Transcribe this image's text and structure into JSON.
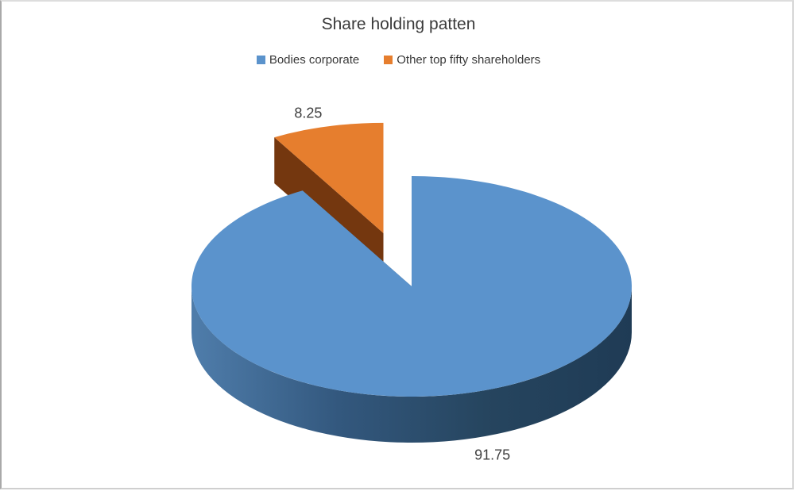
{
  "page": {
    "background": "#FFFFFF",
    "frame_border_color": "#C9C9C9"
  },
  "chart_data": {
    "type": "pie",
    "effect": "3d-exploded",
    "title": "Share holding patten",
    "legend_position": "top",
    "grid": false,
    "series": [
      {
        "name": "Bodies corporate",
        "value": 91.75,
        "label": "91.75",
        "color": "#5B93CC",
        "side_gradient": [
          "#4F7DAB",
          "#33587E",
          "#26455F",
          "#1F3B55"
        ],
        "exploded": false
      },
      {
        "name": "Other top fifty shareholders",
        "value": 8.25,
        "label": "8.25",
        "color": "#E67E2E",
        "side_color": "#74370F",
        "exploded": true
      }
    ],
    "title_color": "#3A3A3A",
    "label_color": "#3F3F3F",
    "legend_text_color": "#383838"
  }
}
